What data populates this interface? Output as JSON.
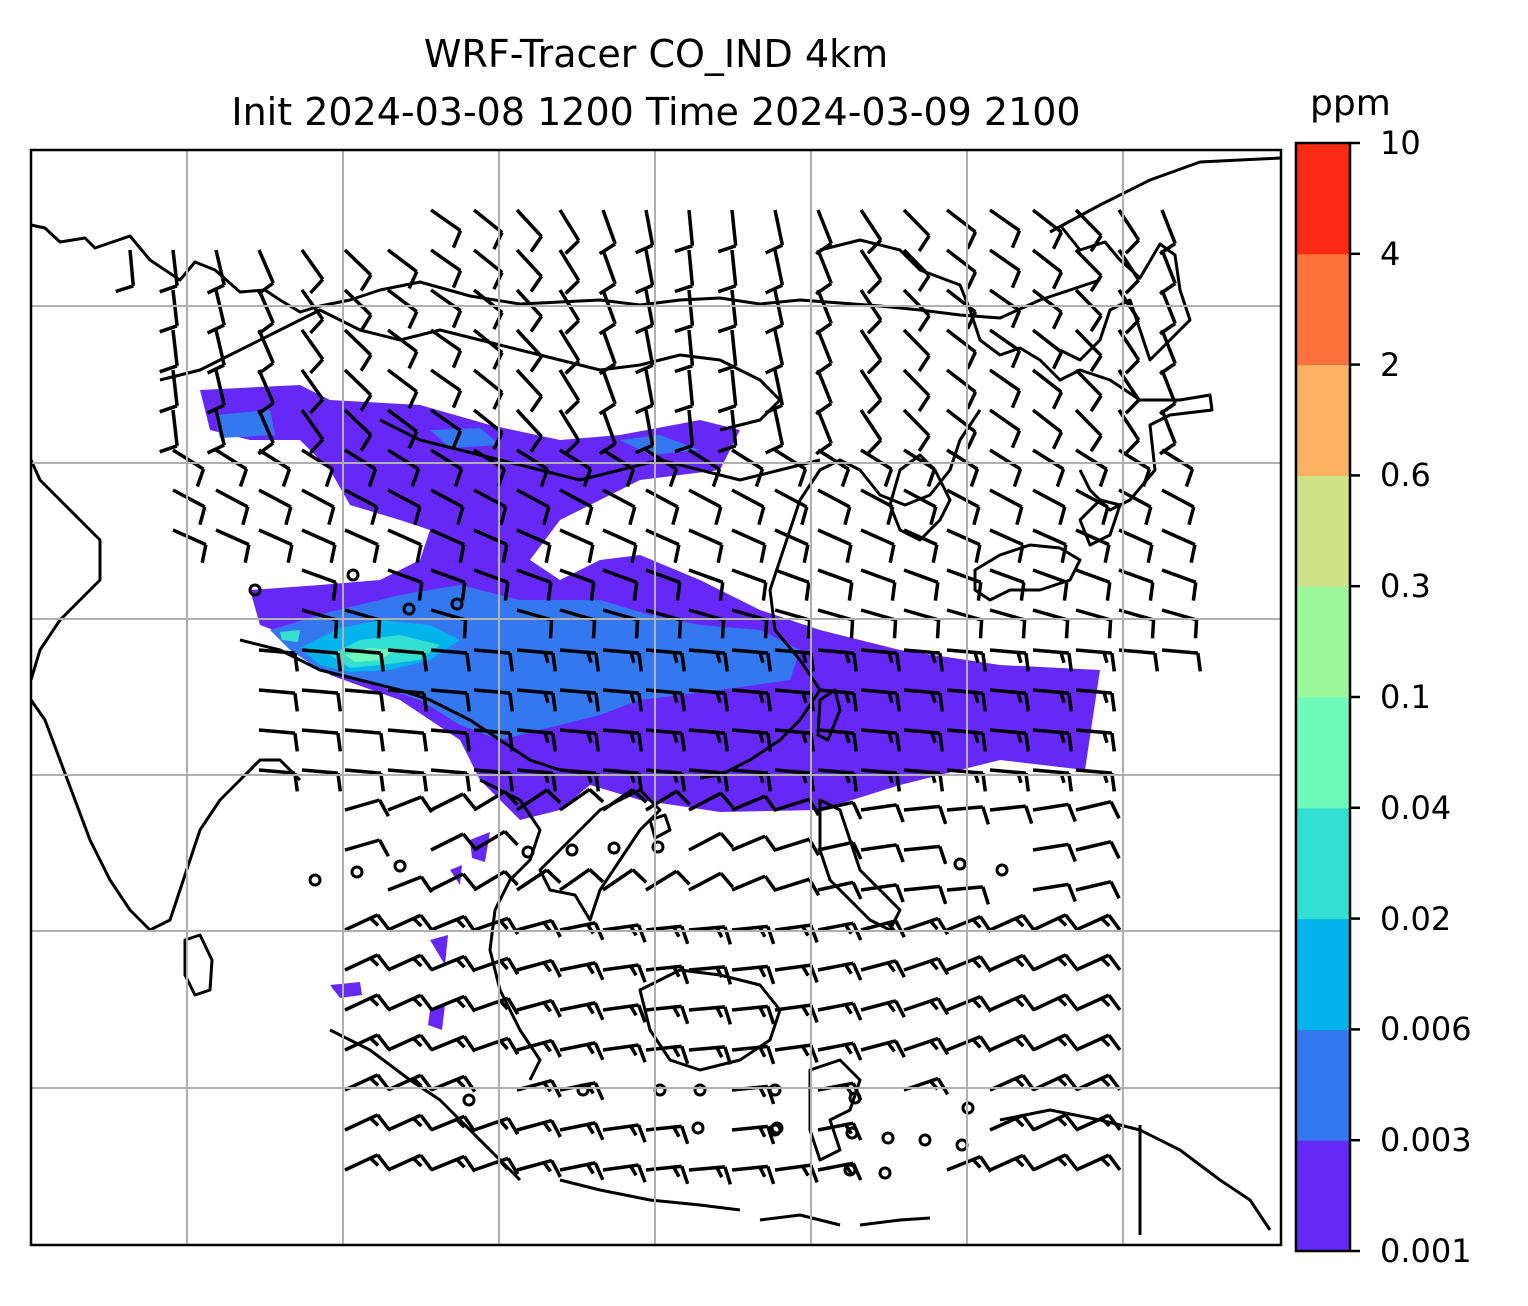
{
  "title": {
    "line1": "WRF-Tracer CO_IND 4km",
    "line2": "Init 2024-03-08 1200 Time 2024-03-09 2100"
  },
  "colorbar": {
    "unit": "ppm",
    "levels": [
      "0.001",
      "0.003",
      "0.006",
      "0.02",
      "0.04",
      "0.1",
      "0.3",
      "0.6",
      "2",
      "4",
      "10"
    ],
    "colors": [
      "#6528f7",
      "#3478f0",
      "#03b4ec",
      "#33dfd1",
      "#6ff9bb",
      "#9bf99b",
      "#d0e188",
      "#fcb163",
      "#fd723c",
      "#fa2a15"
    ]
  },
  "map": {
    "gridlines": true,
    "coastline_color": "#000000",
    "grid_color": "#b0b0b0",
    "variable": "CO_IND tracer concentration",
    "overlay": "wind barbs"
  }
}
